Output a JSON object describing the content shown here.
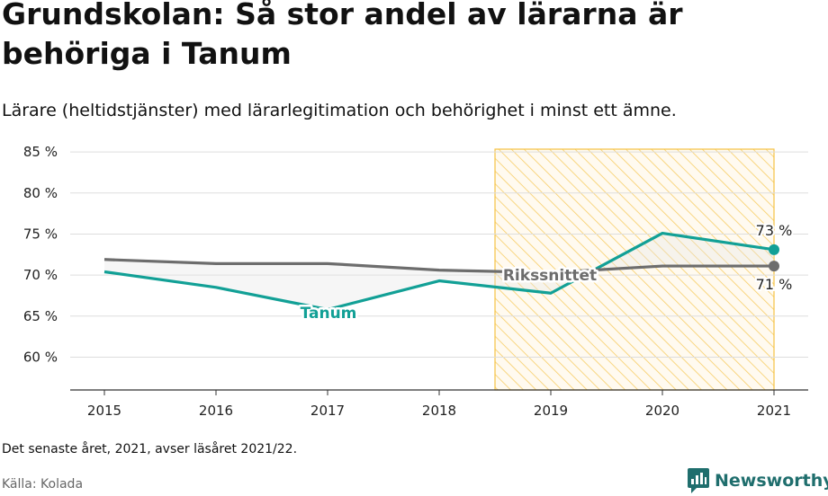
{
  "title": "Grundskolan: Så stor andel av lärarna är behöriga i Tanum",
  "subtitle": "Lärare (heltidstjänster) med lärarlegitimation och behörighet i minst ett ämne.",
  "note": "Det senaste året, 2021, avser läsåret 2021/22.",
  "source": "Källa: Kolada",
  "brand": "Newsworthy",
  "colors": {
    "tanum": "#12a096",
    "rikssnitt": "#6d6d6d",
    "highlight": "#f5c242"
  },
  "chart_data": {
    "type": "line",
    "x": [
      "2015",
      "2016",
      "2017",
      "2018",
      "2019",
      "2020",
      "2021"
    ],
    "series": [
      {
        "name": "Tanum",
        "values": [
          70.4,
          68.5,
          65.8,
          69.3,
          67.8,
          75.1,
          73.1
        ]
      },
      {
        "name": "Rikssnittet",
        "values": [
          71.9,
          71.4,
          71.4,
          70.6,
          70.3,
          71.1,
          71.1
        ]
      }
    ],
    "ylim": [
      56,
      86
    ],
    "yticks": [
      60,
      65,
      70,
      75,
      80,
      85
    ],
    "ytick_labels": [
      "60 %",
      "65 %",
      "70 %",
      "75 %",
      "80 %",
      "85 %"
    ],
    "highlight_range": [
      "2019",
      "2021"
    ],
    "end_labels": {
      "Tanum": "73 %",
      "Rikssnittet": "71 %"
    },
    "grid": true
  }
}
